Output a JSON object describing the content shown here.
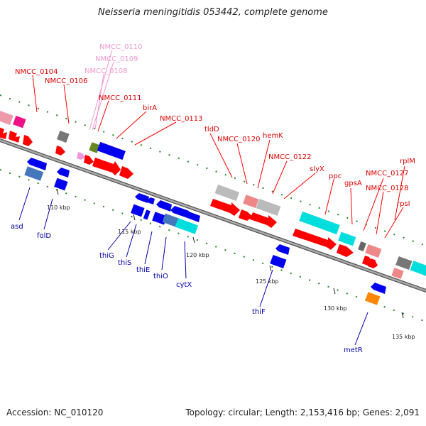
{
  "title": "Neisseria meningitidis 053442, complete genome",
  "footer": {
    "accession": "Accession: NC_010120",
    "stats": "Topology: circular; Length: 2,153,416 bp; Genes: 2,091"
  },
  "colors": {
    "red": "#ff0000",
    "pink": "#ee99aa",
    "blue": "#0000ee",
    "cyan": "#00dddd",
    "gray": "#aaaaaa",
    "magenta": "#ee1188",
    "orange": "#ff8800",
    "olive": "#668822",
    "steelblue": "#4477bb",
    "backbone": "#888888"
  },
  "ticks": [
    "110 kbp",
    "115 kbp",
    "120 kbp",
    "125 kbp",
    "130 kbp",
    "135 kbp"
  ],
  "labels_top": [
    "NMCC_0104",
    "NMCC_0106",
    "NMCC_0108",
    "NMCC_0109",
    "NMCC_0110",
    "NMCC_0111",
    "birA",
    "NMCC_0113",
    "tldD",
    "NMCC_0120",
    "hemK",
    "NMCC_0122",
    "slyX",
    "ppc",
    "gpsA",
    "NMCC_0127",
    "NMCC_0128",
    "rplM",
    "rpsI"
  ],
  "labels_bottom": [
    "asd",
    "folD",
    "thiG",
    "thiS",
    "thiE",
    "thiO",
    "cytX",
    "thiF",
    "metR"
  ]
}
